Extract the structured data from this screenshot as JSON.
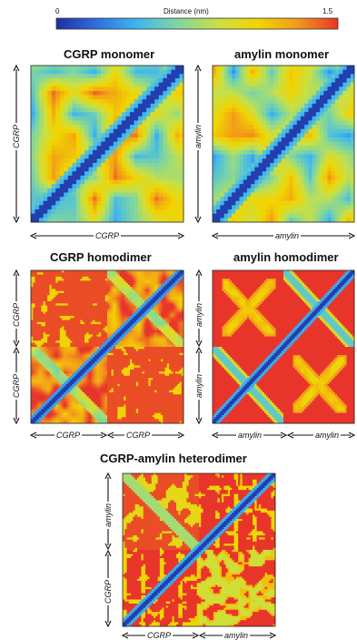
{
  "colorbar": {
    "min_label": "0",
    "max_label": "1.5",
    "title": "Distance (nm)",
    "min": 0,
    "max": 1.5,
    "colors": [
      "#1f2f9e",
      "#2f6fe0",
      "#3fb6f0",
      "#7fd6a0",
      "#c8e046",
      "#f2d400",
      "#f29a1a",
      "#e8352a"
    ]
  },
  "chart_data": [
    {
      "type": "heatmap",
      "title": "CGRP monomer",
      "x_segments": [
        "CGRP"
      ],
      "y_segments": [
        "CGRP"
      ],
      "residues": 37,
      "diagonal_value": 0.0,
      "typical_offdiag_value": 0.8,
      "max_value": 1.5
    },
    {
      "type": "heatmap",
      "title": "amylin monomer",
      "x_segments": [
        "amylin"
      ],
      "y_segments": [
        "amylin"
      ],
      "residues": 37,
      "diagonal_value": 0.0,
      "typical_offdiag_value": 0.75,
      "max_value": 1.5
    },
    {
      "type": "heatmap",
      "title": "CGRP homodimer",
      "x_segments": [
        "CGRP",
        "CGRP"
      ],
      "y_segments": [
        "CGRP",
        "CGRP"
      ],
      "residues": 74,
      "diagonal_value": 0.0,
      "intra_chain_value": 0.9,
      "inter_chain_value": 1.5
    },
    {
      "type": "heatmap",
      "title": "amylin homodimer",
      "x_segments": [
        "amylin",
        "amylin"
      ],
      "y_segments": [
        "amylin",
        "amylin"
      ],
      "residues": 74,
      "diagonal_value": 0.0,
      "intra_chain_value": 1.5,
      "inter_chain_value": 1.5
    },
    {
      "type": "heatmap",
      "title": "CGRP-amylin heterodimer",
      "x_segments": [
        "CGRP",
        "amylin"
      ],
      "y_segments": [
        "amylin",
        "CGRP"
      ],
      "residues": 74,
      "diagonal_value": 0.0,
      "intra_chain_value": 1.3,
      "inter_chain_value": 1.4
    }
  ]
}
